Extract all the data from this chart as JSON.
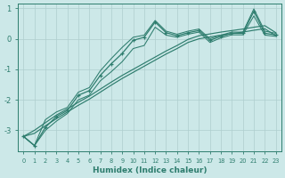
{
  "xlabel": "Humidex (Indice chaleur)",
  "x": [
    0,
    1,
    2,
    3,
    4,
    5,
    6,
    7,
    8,
    9,
    10,
    11,
    12,
    13,
    14,
    15,
    16,
    17,
    18,
    19,
    20,
    21,
    22,
    23
  ],
  "line_main": [
    -3.2,
    -3.5,
    -2.9,
    -2.55,
    -2.35,
    -1.85,
    -1.7,
    -1.2,
    -0.82,
    -0.48,
    -0.05,
    0.05,
    0.55,
    0.2,
    0.1,
    0.2,
    0.27,
    -0.05,
    0.08,
    0.18,
    0.18,
    0.9,
    0.18,
    0.13
  ],
  "line_upper": [
    -3.2,
    -3.5,
    -2.65,
    -2.4,
    -2.25,
    -1.75,
    -1.6,
    -1.05,
    -0.65,
    -0.28,
    0.05,
    0.12,
    0.6,
    0.25,
    0.15,
    0.25,
    0.32,
    0.0,
    0.12,
    0.22,
    0.22,
    0.98,
    0.25,
    0.18
  ],
  "line_lower": [
    -3.2,
    -3.5,
    -3.0,
    -2.7,
    -2.45,
    -2.0,
    -1.85,
    -1.38,
    -1.08,
    -0.75,
    -0.32,
    -0.22,
    0.38,
    0.12,
    0.05,
    0.15,
    0.22,
    -0.12,
    0.03,
    0.13,
    0.13,
    0.75,
    0.12,
    0.08
  ],
  "line_reg1": [
    -3.2,
    -3.0,
    -2.75,
    -2.5,
    -2.3,
    -2.08,
    -1.88,
    -1.65,
    -1.42,
    -1.2,
    -1.0,
    -0.8,
    -0.6,
    -0.4,
    -0.22,
    -0.02,
    0.1,
    0.16,
    0.22,
    0.27,
    0.32,
    0.38,
    0.43,
    0.2
  ],
  "line_reg2": [
    -3.2,
    -3.1,
    -2.85,
    -2.62,
    -2.4,
    -2.18,
    -1.98,
    -1.75,
    -1.52,
    -1.3,
    -1.1,
    -0.9,
    -0.7,
    -0.5,
    -0.32,
    -0.12,
    0.0,
    0.06,
    0.12,
    0.17,
    0.22,
    0.28,
    0.33,
    0.1
  ],
  "bg_color": "#cce8e8",
  "grid_color": "#aecece",
  "line_color": "#2e7d6e",
  "ylim": [
    -3.7,
    1.15
  ],
  "yticks": [
    1,
    0,
    -1,
    -2,
    -3
  ],
  "xlim": [
    -0.5,
    23.5
  ],
  "xticks": [
    0,
    1,
    2,
    3,
    4,
    5,
    6,
    7,
    8,
    9,
    10,
    11,
    12,
    13,
    14,
    15,
    16,
    17,
    18,
    19,
    20,
    21,
    22,
    23
  ]
}
